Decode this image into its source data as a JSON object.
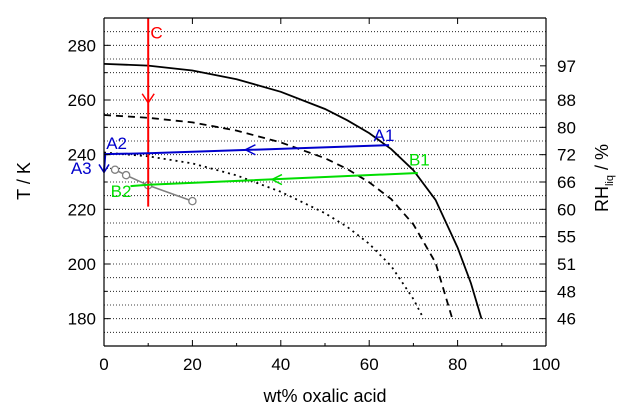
{
  "chart_data": {
    "type": "line",
    "xlabel": "wt% oxalic acid",
    "ylabel": "T / K",
    "ylabel_right": "RH",
    "ylabel_right_sub": "liq",
    "ylabel_right_unit": " / %",
    "xlim": [
      0,
      100
    ],
    "ylim": [
      170,
      290
    ],
    "x_ticks": [
      0,
      20,
      40,
      60,
      80,
      100
    ],
    "y_ticks": [
      180,
      200,
      220,
      240,
      260,
      280
    ],
    "grid": "horizontal dotted lines at every 5 K",
    "right_axis_ticks": [
      {
        "label": "97",
        "T": 272.5
      },
      {
        "label": "88",
        "T": 260
      },
      {
        "label": "80",
        "T": 250
      },
      {
        "label": "72",
        "T": 240
      },
      {
        "label": "66",
        "T": 230
      },
      {
        "label": "60",
        "T": 220
      },
      {
        "label": "55",
        "T": 210
      },
      {
        "label": "51",
        "T": 200
      },
      {
        "label": "48",
        "T": 190
      },
      {
        "label": "46",
        "T": 180
      }
    ],
    "series": [
      {
        "style": "solid",
        "color": "#000000",
        "points": [
          [
            0,
            273.2
          ],
          [
            10,
            272.6
          ],
          [
            20,
            270.8
          ],
          [
            30,
            267.6
          ],
          [
            40,
            263.0
          ],
          [
            50,
            256.7
          ],
          [
            55,
            252.6
          ],
          [
            60,
            247.9
          ],
          [
            65,
            242.0
          ],
          [
            70,
            234.3
          ],
          [
            75,
            223.5
          ],
          [
            80,
            206.0
          ],
          [
            83,
            193.0
          ],
          [
            85.4,
            180.0
          ]
        ]
      },
      {
        "style": "dashed",
        "color": "#000000",
        "points": [
          [
            0,
            254.5
          ],
          [
            10,
            253.5
          ],
          [
            20,
            251.8
          ],
          [
            30,
            248.8
          ],
          [
            40,
            244.5
          ],
          [
            50,
            238.7
          ],
          [
            55,
            234.8
          ],
          [
            60,
            229.9
          ],
          [
            65,
            223.7
          ],
          [
            70,
            214.5
          ],
          [
            75,
            200.5
          ],
          [
            78.8,
            180.0
          ]
        ]
      },
      {
        "style": "dotted",
        "color": "#000000",
        "points": [
          [
            0,
            240.8
          ],
          [
            10,
            239.4
          ],
          [
            20,
            236.8
          ],
          [
            30,
            232.4
          ],
          [
            40,
            226.4
          ],
          [
            50,
            218.6
          ],
          [
            55,
            213.6
          ],
          [
            60,
            207.4
          ],
          [
            65,
            199.2
          ],
          [
            70,
            187.2
          ],
          [
            72.3,
            180.0
          ]
        ]
      },
      {
        "style": "solid",
        "color": "#808080",
        "markers": "open-circle",
        "points": [
          [
            2.5,
            234.5
          ],
          [
            5,
            232.5
          ],
          [
            10,
            228.8
          ],
          [
            20,
            223.0
          ]
        ]
      }
    ],
    "annotations": [
      {
        "text": "C",
        "color": "#ff0000",
        "x": 10.5,
        "y": 282.5
      },
      {
        "text": "A1",
        "color": "#0000cc",
        "x": 61,
        "y": 245
      },
      {
        "text": "A2",
        "color": "#0000cc",
        "x": 0.5,
        "y": 242
      },
      {
        "text": "A3",
        "color": "#0000cc",
        "x": -7.5,
        "y": 233
      },
      {
        "text": "B1",
        "color": "#00dd00",
        "x": 69,
        "y": 236
      },
      {
        "text": "B2",
        "color": "#00dd00",
        "x": 1.5,
        "y": 224.5
      }
    ],
    "trajectories": [
      {
        "name": "C",
        "color": "#ff0000",
        "points": [
          [
            10,
            290
          ],
          [
            10,
            221
          ]
        ],
        "arrow_at": [
          10,
          259
        ]
      },
      {
        "name": "A",
        "color": "#0000cc",
        "points": [
          [
            64.5,
            243.5
          ],
          [
            10,
            240.5
          ],
          [
            0.3,
            240.2
          ],
          [
            0,
            234
          ]
        ],
        "arrow_at": [
          32,
          241.8
        ]
      },
      {
        "name": "B",
        "color": "#00dd00",
        "points": [
          [
            71,
            233.3
          ],
          [
            10,
            229
          ],
          [
            6,
            228.5
          ]
        ],
        "arrow_at": [
          38,
          230.9
        ]
      }
    ]
  }
}
